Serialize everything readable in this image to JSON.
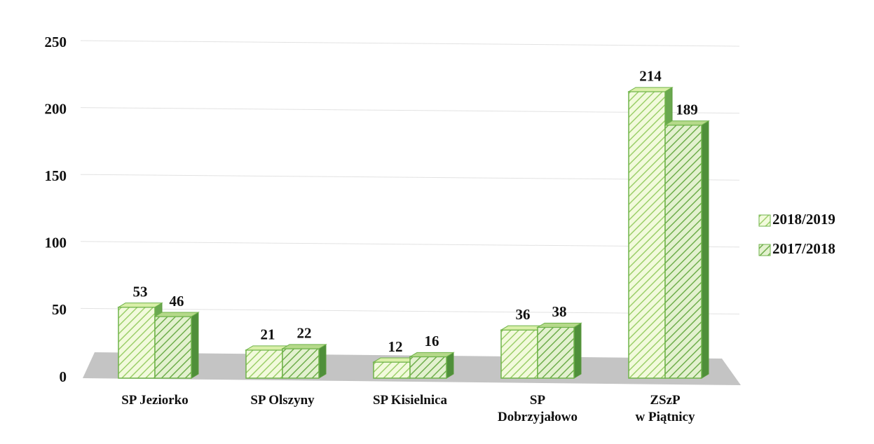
{
  "chart_data": {
    "type": "bar",
    "categories": [
      "SP Jeziorko",
      "SP Olszyny",
      "SP Kisielnica",
      "SP\nDobrzyjałowo",
      "ZSzP\nw Piątnicy"
    ],
    "series": [
      {
        "name": "2018/2019",
        "color": "#d9efa8",
        "values": [
          53,
          21,
          12,
          36,
          214
        ]
      },
      {
        "name": "2017/2018",
        "color": "#b5d98a",
        "values": [
          46,
          22,
          16,
          38,
          189
        ]
      }
    ],
    "ylim": [
      0,
      250
    ],
    "yticks": [
      0,
      50,
      100,
      150,
      200,
      250
    ],
    "grid": true,
    "legend": "right"
  }
}
